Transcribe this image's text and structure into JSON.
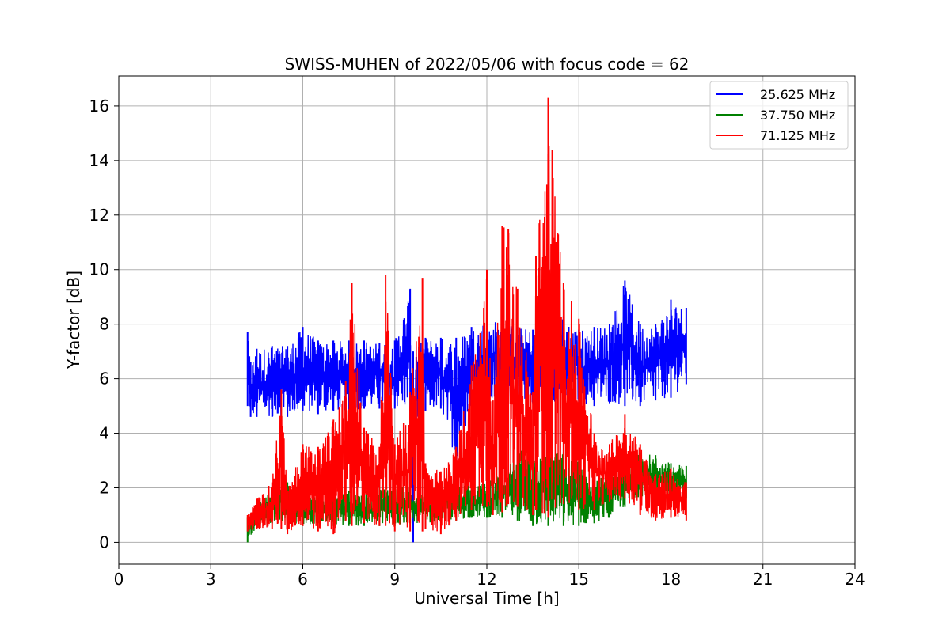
{
  "chart_data": {
    "type": "line",
    "title": "SWISS-MUHEN of 2022/05/06 with focus code = 62",
    "xlabel": "Universal Time [h]",
    "ylabel": "Y-factor [dB]",
    "xlim": [
      0,
      24
    ],
    "ylim": [
      -0.8,
      17.1
    ],
    "x_ticks": [
      0,
      3,
      6,
      9,
      12,
      15,
      18,
      21,
      24
    ],
    "x_tick_labels": [
      "0",
      "3",
      "6",
      "9",
      "12",
      "15",
      "18",
      "21",
      "24"
    ],
    "y_ticks": [
      0,
      2,
      4,
      6,
      8,
      10,
      12,
      14,
      16
    ],
    "y_tick_labels": [
      "0",
      "2",
      "4",
      "6",
      "8",
      "10",
      "12",
      "14",
      "16"
    ],
    "grid": true,
    "legend_position": "top-right",
    "series": [
      {
        "name": "25.625 MHz",
        "color": "#0000ff",
        "x": [
          4.2,
          4.3,
          4.5,
          5.0,
          5.5,
          6.0,
          6.5,
          7.0,
          7.5,
          8.0,
          8.5,
          9.0,
          9.5,
          9.6,
          9.7,
          9.8,
          10.0,
          10.5,
          11.0,
          11.5,
          12.0,
          12.5,
          13.0,
          13.5,
          14.0,
          14.5,
          15.0,
          15.5,
          16.0,
          16.5,
          17.0,
          17.5,
          18.0,
          18.5
        ],
        "y_min": [
          5.0,
          4.6,
          4.6,
          4.6,
          4.6,
          4.8,
          4.7,
          4.8,
          4.8,
          4.9,
          4.9,
          4.9,
          4.8,
          0.0,
          4.4,
          4.8,
          4.8,
          4.9,
          3.0,
          5.0,
          5.0,
          5.0,
          5.1,
          5.1,
          5.2,
          5.1,
          5.1,
          5.0,
          5.1,
          5.0,
          5.0,
          5.2,
          5.3,
          5.8
        ],
        "y_max": [
          7.7,
          6.6,
          7.1,
          7.2,
          7.2,
          7.9,
          7.4,
          7.4,
          7.4,
          7.4,
          7.3,
          7.4,
          9.3,
          7.0,
          6.8,
          7.3,
          7.5,
          7.5,
          7.5,
          7.9,
          8.2,
          8.1,
          7.9,
          7.8,
          7.9,
          8.3,
          7.8,
          7.9,
          8.0,
          9.6,
          8.0,
          8.0,
          8.9,
          8.6
        ]
      },
      {
        "name": "37.750 MHz",
        "color": "#008000",
        "x": [
          4.2,
          4.5,
          5.0,
          5.5,
          6.0,
          6.5,
          7.0,
          7.5,
          8.0,
          8.5,
          9.0,
          9.5,
          10.0,
          10.5,
          11.0,
          11.5,
          12.0,
          12.5,
          13.0,
          13.5,
          14.0,
          14.5,
          15.0,
          15.5,
          16.0,
          16.5,
          17.0,
          17.5,
          18.0,
          18.5
        ],
        "y_min": [
          0.0,
          0.6,
          0.7,
          0.8,
          0.6,
          0.7,
          0.6,
          0.6,
          0.6,
          0.6,
          0.6,
          0.7,
          0.7,
          0.8,
          0.8,
          0.9,
          0.9,
          0.9,
          0.8,
          0.6,
          0.6,
          0.6,
          0.6,
          0.7,
          0.9,
          1.3,
          1.7,
          1.6,
          1.6,
          1.6
        ],
        "y_max": [
          0.9,
          1.4,
          1.9,
          2.2,
          1.9,
          1.8,
          1.9,
          1.9,
          1.9,
          2.0,
          2.1,
          2.0,
          1.8,
          2.0,
          2.2,
          2.1,
          2.2,
          2.6,
          3.5,
          3.0,
          3.3,
          3.3,
          3.0,
          2.4,
          2.4,
          2.9,
          3.3,
          3.2,
          2.9,
          2.8
        ]
      },
      {
        "name": "71.125 MHz",
        "color": "#ff0000",
        "x": [
          4.2,
          4.5,
          5.0,
          5.3,
          5.5,
          6.0,
          6.5,
          7.0,
          7.4,
          7.6,
          8.0,
          8.5,
          8.7,
          9.0,
          9.5,
          9.9,
          10.0,
          10.5,
          11.0,
          11.5,
          12.0,
          12.2,
          12.5,
          12.7,
          13.0,
          13.5,
          13.6,
          14.0,
          14.5,
          15.0,
          15.5,
          16.0,
          16.5,
          17.0,
          17.5,
          18.0,
          18.5
        ],
        "y_min": [
          0.4,
          0.5,
          0.5,
          0.5,
          0.3,
          0.6,
          0.4,
          0.3,
          0.8,
          0.6,
          0.7,
          0.6,
          0.6,
          0.4,
          0.4,
          0.4,
          0.5,
          0.3,
          0.8,
          1.2,
          1.3,
          1.0,
          1.1,
          1.4,
          1.3,
          1.0,
          1.2,
          0.9,
          1.4,
          1.2,
          1.2,
          1.5,
          1.6,
          1.0,
          0.8,
          0.9,
          0.8
        ],
        "y_max": [
          1.0,
          1.6,
          2.2,
          5.6,
          1.9,
          3.6,
          3.5,
          4.5,
          5.9,
          9.5,
          4.2,
          3.5,
          9.8,
          3.6,
          5.5,
          9.7,
          2.9,
          2.6,
          3.5,
          6.5,
          10.0,
          5.2,
          11.6,
          11.5,
          9.3,
          5.5,
          10.5,
          16.3,
          9.5,
          8.2,
          4.0,
          3.6,
          4.7,
          3.6,
          2.5,
          2.7,
          2.2
        ]
      }
    ]
  }
}
